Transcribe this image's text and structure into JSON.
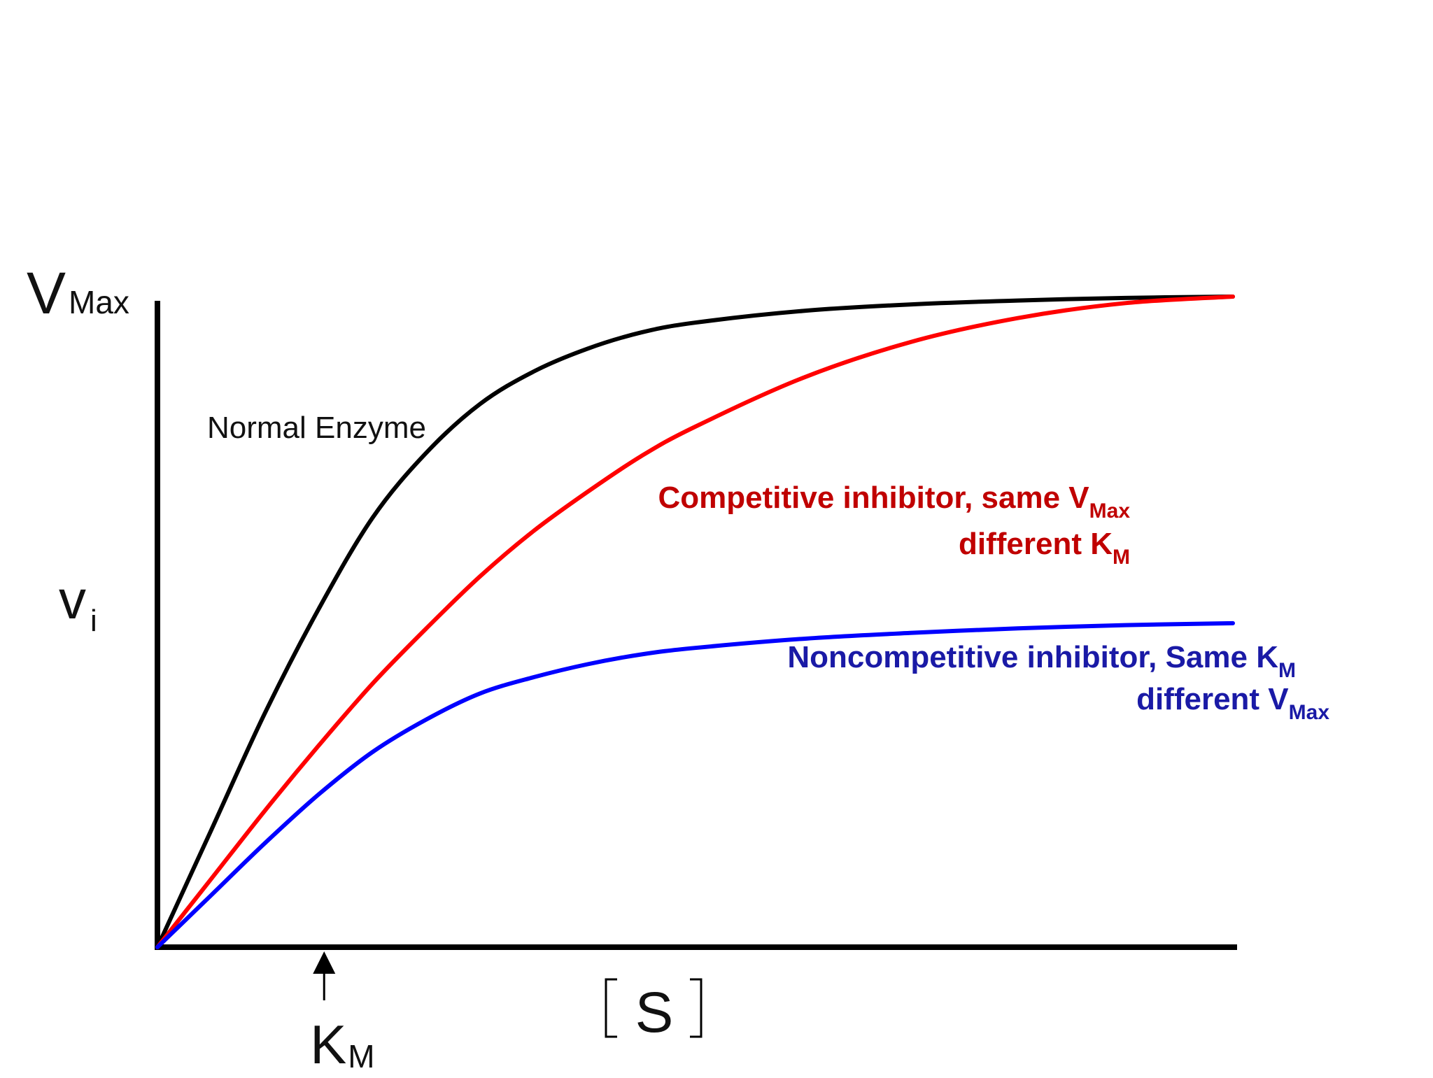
{
  "chart_data": {
    "type": "line",
    "title": "",
    "xlabel": "[S]",
    "ylabel": "vi",
    "xlim": [
      0,
      1
    ],
    "ylim": [
      0,
      1
    ],
    "grid": false,
    "legend": "none",
    "y_axis_labels": {
      "vmax_main": "V",
      "vmax_sub": "Max",
      "vi_main": "v",
      "vi_sub": "i"
    },
    "x_axis_labels": {
      "s_label": "S",
      "km_main": "K",
      "km_sub": "M"
    },
    "km_value": 0.155,
    "series": [
      {
        "label": "Normal Enzyme",
        "color": "#000000",
        "x": [
          0,
          0.05,
          0.1,
          0.15,
          0.2,
          0.25,
          0.3,
          0.35,
          0.4,
          0.45,
          0.5,
          0.6,
          0.7,
          0.8,
          0.9,
          1.0
        ],
        "y": [
          0,
          0.18,
          0.36,
          0.52,
          0.66,
          0.76,
          0.835,
          0.885,
          0.92,
          0.945,
          0.96,
          0.978,
          0.988,
          0.994,
          0.998,
          1.0
        ]
      },
      {
        "label_line1": "Competitive inhibitor,  same V",
        "label_line1_sub": "Max",
        "label_line2": "different K",
        "label_line2_sub": "M",
        "color": "#ff0000",
        "x": [
          0,
          0.05,
          0.1,
          0.15,
          0.2,
          0.25,
          0.3,
          0.35,
          0.4,
          0.45,
          0.5,
          0.6,
          0.7,
          0.8,
          0.9,
          1.0
        ],
        "y": [
          0,
          0.105,
          0.21,
          0.31,
          0.405,
          0.49,
          0.57,
          0.64,
          0.7,
          0.755,
          0.8,
          0.875,
          0.93,
          0.967,
          0.99,
          1.0
        ]
      },
      {
        "label_line1": "Noncompetitive inhibitor,  Same K",
        "label_line1_sub": "M",
        "label_line2": "different V",
        "label_line2_sub": "Max",
        "color": "#0000ff",
        "x": [
          0,
          0.05,
          0.1,
          0.15,
          0.2,
          0.25,
          0.3,
          0.35,
          0.4,
          0.45,
          0.5,
          0.6,
          0.7,
          0.8,
          0.9,
          1.0
        ],
        "y": [
          0,
          0.08,
          0.16,
          0.235,
          0.3,
          0.35,
          0.39,
          0.415,
          0.435,
          0.45,
          0.46,
          0.474,
          0.483,
          0.49,
          0.495,
          0.498
        ]
      }
    ]
  }
}
